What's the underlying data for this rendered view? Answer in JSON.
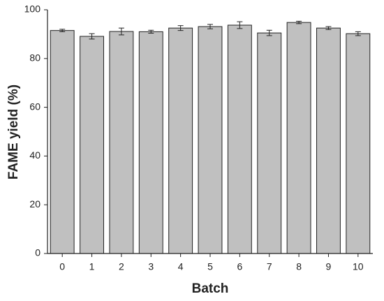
{
  "chart_data": {
    "type": "bar",
    "x_label": "Batch",
    "y_label": "FAME yield (%)",
    "categories": [
      "0",
      "1",
      "2",
      "3",
      "4",
      "5",
      "6",
      "7",
      "8",
      "9",
      "10"
    ],
    "values": [
      91.5,
      89.1,
      91.1,
      91.0,
      92.5,
      93.1,
      93.7,
      90.5,
      94.8,
      92.5,
      90.2
    ],
    "errors": [
      0.5,
      1.1,
      1.4,
      0.6,
      1.0,
      0.9,
      1.4,
      1.1,
      0.5,
      0.6,
      0.8
    ],
    "color": "#c0c0c0",
    "ylim": [
      0,
      100
    ],
    "yticks": [
      0,
      20,
      40,
      60,
      80,
      100
    ],
    "grid": false
  }
}
